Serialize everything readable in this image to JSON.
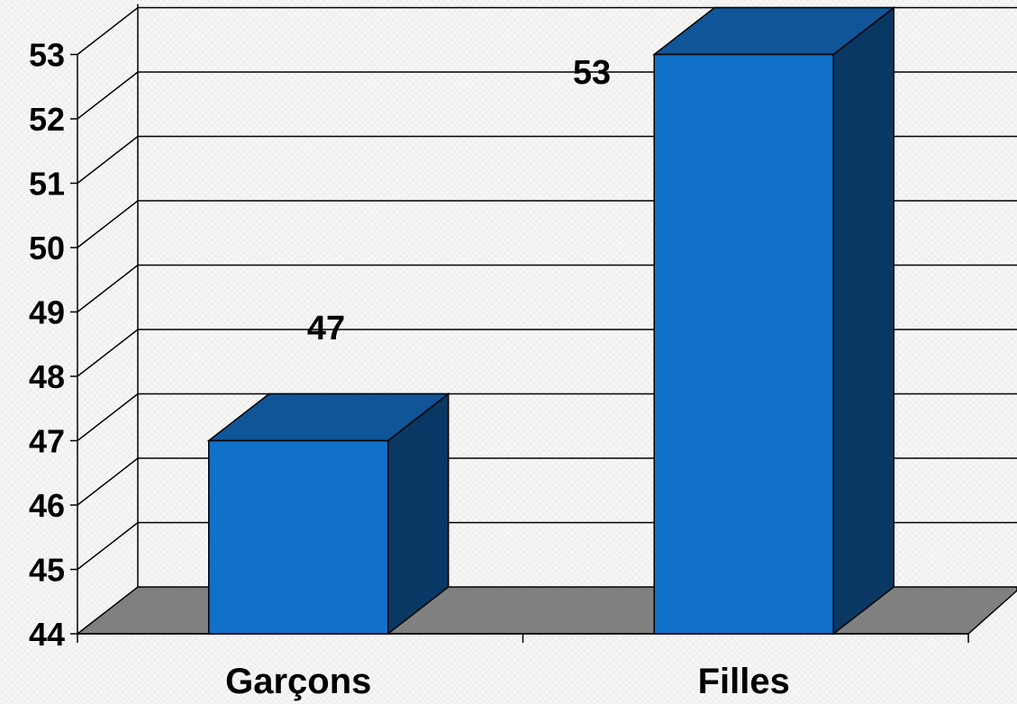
{
  "chart_data": {
    "type": "bar",
    "style": "3d",
    "categories": [
      "Garçons",
      "Filles"
    ],
    "values": [
      47,
      53
    ],
    "data_labels": [
      "47",
      "53"
    ],
    "ylim": [
      44,
      53
    ],
    "yticks": [
      "44",
      "45",
      "46",
      "47",
      "48",
      "49",
      "50",
      "51",
      "52",
      "53"
    ],
    "grid": true,
    "legend": false,
    "colors": {
      "bar_front": "#1170c8",
      "bar_top": "#0f5598",
      "bar_side": "#0a3864",
      "floor": "#808080",
      "background": "#f7f7f5"
    }
  }
}
